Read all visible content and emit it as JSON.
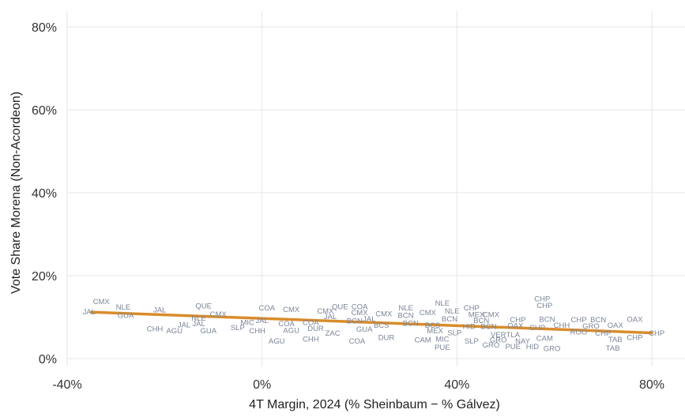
{
  "chart_data": {
    "type": "scatter",
    "title": "",
    "xlabel": "4T Margin, 2024 (% Sheinbaum − % Gálvez)",
    "ylabel": "Vote Share Morena (Non-Acordeon)",
    "xlim": [
      -41,
      87
    ],
    "ylim": [
      -2,
      84
    ],
    "x_ticks": [
      -40,
      0,
      40,
      80
    ],
    "x_tick_labels": [
      "-40%",
      "0%",
      "40%",
      "80%"
    ],
    "y_ticks": [
      0,
      20,
      40,
      60,
      80
    ],
    "y_tick_labels": [
      "0%",
      "20%",
      "40%",
      "60%",
      "80%"
    ],
    "grid": true,
    "trend_line": {
      "x": [
        -35,
        80
      ],
      "y": [
        11.2,
        6.2
      ],
      "color": "#d98c2b"
    },
    "points": [
      {
        "label": "CMX",
        "x": -33,
        "y": 13.8
      },
      {
        "label": "JAL",
        "x": -35.5,
        "y": 11.3
      },
      {
        "label": "NLE",
        "x": -28.5,
        "y": 12.5
      },
      {
        "label": "GUA",
        "x": -28,
        "y": 10.5
      },
      {
        "label": "JAL",
        "x": -21,
        "y": 11.8
      },
      {
        "label": "CHH",
        "x": -22,
        "y": 7.2
      },
      {
        "label": "JAL",
        "x": -16,
        "y": 8.2
      },
      {
        "label": "AGU",
        "x": -18,
        "y": 6.8
      },
      {
        "label": "QUE",
        "x": -12,
        "y": 12.8
      },
      {
        "label": "NLE",
        "x": -13,
        "y": 9.8
      },
      {
        "label": "CMX",
        "x": -9,
        "y": 10.8
      },
      {
        "label": "JAL",
        "x": -13,
        "y": 8.5
      },
      {
        "label": "GUA",
        "x": -11,
        "y": 6.8
      },
      {
        "label": "SLP",
        "x": -5,
        "y": 7.5
      },
      {
        "label": "MIC",
        "x": -3,
        "y": 8.8
      },
      {
        "label": "JAL",
        "x": 0,
        "y": 9.2
      },
      {
        "label": "CHH",
        "x": -1,
        "y": 6.8
      },
      {
        "label": "COA",
        "x": 1,
        "y": 12.3
      },
      {
        "label": "CMX",
        "x": 6,
        "y": 11.9
      },
      {
        "label": "COA",
        "x": 5,
        "y": 8.5
      },
      {
        "label": "AGU",
        "x": 6,
        "y": 6.9
      },
      {
        "label": "AGU",
        "x": 3,
        "y": 4.3
      },
      {
        "label": "CMX",
        "x": 13,
        "y": 11.5
      },
      {
        "label": "COA",
        "x": 10,
        "y": 8.8
      },
      {
        "label": "DUR",
        "x": 11,
        "y": 7.3
      },
      {
        "label": "JAL",
        "x": 14,
        "y": 10.2
      },
      {
        "label": "CHH",
        "x": 10,
        "y": 4.8
      },
      {
        "label": "ZAC",
        "x": 14.5,
        "y": 6.2
      },
      {
        "label": "QUE",
        "x": 16,
        "y": 12.6
      },
      {
        "label": "COA",
        "x": 20,
        "y": 12.6
      },
      {
        "label": "CMX",
        "x": 20,
        "y": 11.1
      },
      {
        "label": "BCN",
        "x": 19,
        "y": 9.1
      },
      {
        "label": "JAL",
        "x": 22,
        "y": 9.6
      },
      {
        "label": "GUA",
        "x": 21,
        "y": 7.1
      },
      {
        "label": "COA",
        "x": 19.5,
        "y": 4.3
      },
      {
        "label": "CMX",
        "x": 25,
        "y": 10.9
      },
      {
        "label": "BCS",
        "x": 24.5,
        "y": 8.1
      },
      {
        "label": "DUR",
        "x": 25.5,
        "y": 5.1
      },
      {
        "label": "NLE",
        "x": 29.5,
        "y": 12.3
      },
      {
        "label": "BCN",
        "x": 29.5,
        "y": 10.5
      },
      {
        "label": "BCN",
        "x": 30.5,
        "y": 8.6
      },
      {
        "label": "CMX",
        "x": 34,
        "y": 11.1
      },
      {
        "label": "BCS",
        "x": 35,
        "y": 8.1
      },
      {
        "label": "CAM",
        "x": 33,
        "y": 4.6
      },
      {
        "label": "NLE",
        "x": 37,
        "y": 13.4
      },
      {
        "label": "NLE",
        "x": 39,
        "y": 11.5
      },
      {
        "label": "BCN",
        "x": 38.5,
        "y": 9.6
      },
      {
        "label": "MEX",
        "x": 35.5,
        "y": 6.8
      },
      {
        "label": "SLP",
        "x": 39.5,
        "y": 6.3
      },
      {
        "label": "MIC",
        "x": 37,
        "y": 4.8
      },
      {
        "label": "PUE",
        "x": 37,
        "y": 2.8
      },
      {
        "label": "CHP",
        "x": 43,
        "y": 12.3
      },
      {
        "label": "MEX",
        "x": 44,
        "y": 10.7
      },
      {
        "label": "CMX",
        "x": 47,
        "y": 10.7
      },
      {
        "label": "BCN",
        "x": 45,
        "y": 9.2
      },
      {
        "label": "HID",
        "x": 42.5,
        "y": 7.8
      },
      {
        "label": "BCN",
        "x": 46.5,
        "y": 7.8
      },
      {
        "label": "VER",
        "x": 48.5,
        "y": 5.8
      },
      {
        "label": "TLA",
        "x": 51.5,
        "y": 5.8
      },
      {
        "label": "SLP",
        "x": 43,
        "y": 4.3
      },
      {
        "label": "GRO",
        "x": 48.5,
        "y": 4.6
      },
      {
        "label": "GRO",
        "x": 47,
        "y": 3.3
      },
      {
        "label": "CHP",
        "x": 52.5,
        "y": 9.4
      },
      {
        "label": "OAX",
        "x": 52,
        "y": 8.0
      },
      {
        "label": "PUE",
        "x": 51.5,
        "y": 3.0
      },
      {
        "label": "NAY",
        "x": 53.5,
        "y": 4.3
      },
      {
        "label": "CHP",
        "x": 57.5,
        "y": 14.5
      },
      {
        "label": "CHP",
        "x": 58,
        "y": 12.9
      },
      {
        "label": "BCN",
        "x": 58.5,
        "y": 9.5
      },
      {
        "label": "CHP",
        "x": 56.5,
        "y": 7.5
      },
      {
        "label": "CAM",
        "x": 58,
        "y": 5.0
      },
      {
        "label": "HID",
        "x": 55.5,
        "y": 3.0
      },
      {
        "label": "GRO",
        "x": 59.5,
        "y": 2.5
      },
      {
        "label": "CHH",
        "x": 61.5,
        "y": 8.1
      },
      {
        "label": "CHP",
        "x": 65,
        "y": 9.4
      },
      {
        "label": "BCN",
        "x": 69,
        "y": 9.4
      },
      {
        "label": "GRO",
        "x": 67.5,
        "y": 7.9
      },
      {
        "label": "ROO",
        "x": 65,
        "y": 6.5
      },
      {
        "label": "CHP",
        "x": 70,
        "y": 6.2
      },
      {
        "label": "OAX",
        "x": 72.5,
        "y": 8.1
      },
      {
        "label": "OAX",
        "x": 76.5,
        "y": 9.5
      },
      {
        "label": "TAB",
        "x": 72.5,
        "y": 4.7
      },
      {
        "label": "TAB",
        "x": 72,
        "y": 2.6
      },
      {
        "label": "CHP",
        "x": 76.5,
        "y": 5.1
      },
      {
        "label": "CHP",
        "x": 81,
        "y": 6.2
      }
    ]
  }
}
